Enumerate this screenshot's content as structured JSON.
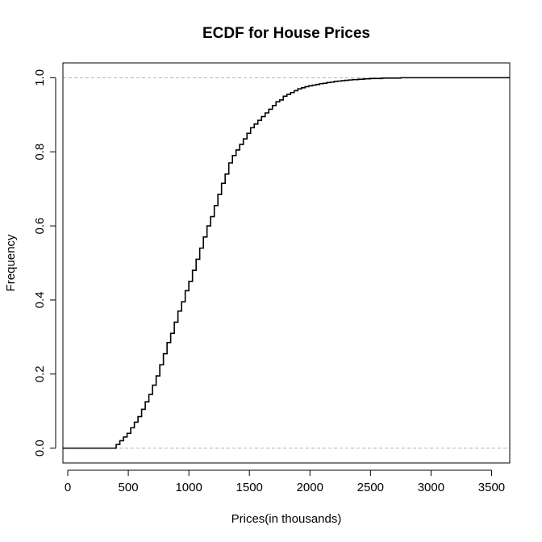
{
  "chart_data": {
    "type": "line",
    "title": "ECDF for House Prices",
    "xlabel": "Prices(in thousands)",
    "ylabel": "Frequency",
    "xlim": [
      -40,
      3650
    ],
    "ylim": [
      -0.04,
      1.04
    ],
    "x_ticks": [
      0,
      500,
      1000,
      1500,
      2000,
      2500,
      3000,
      3500
    ],
    "x_tick_labels": [
      "0",
      "500",
      "1000",
      "1500",
      "2000",
      "2500",
      "3000",
      "3500"
    ],
    "y_ticks": [
      0.0,
      0.2,
      0.4,
      0.6,
      0.8,
      1.0
    ],
    "y_tick_labels": [
      "0.0",
      "0.2",
      "0.4",
      "0.6",
      "0.8",
      "1.0"
    ],
    "reference_lines": [
      0,
      1
    ],
    "grid": false,
    "legend": "none",
    "series": [
      {
        "x": [
          -40,
          370,
          400,
          430,
          460,
          490,
          520,
          550,
          580,
          610,
          640,
          670,
          700,
          730,
          760,
          790,
          820,
          850,
          880,
          910,
          940,
          970,
          1000,
          1030,
          1060,
          1090,
          1120,
          1150,
          1180,
          1210,
          1240,
          1270,
          1300,
          1330,
          1360,
          1390,
          1420,
          1450,
          1480,
          1510,
          1540,
          1570,
          1600,
          1630,
          1660,
          1690,
          1720,
          1750,
          1780,
          1810,
          1840,
          1870,
          1900,
          1930,
          1960,
          1990,
          2020,
          2050,
          2080,
          2110,
          2140,
          2170,
          2200,
          2230,
          2260,
          2290,
          2320,
          2350,
          2400,
          2450,
          2500,
          2550,
          2600,
          2650,
          2700,
          2750,
          2800,
          2850,
          2900,
          2950,
          3000,
          3050,
          3100,
          3650
        ],
        "y": [
          0.0,
          0.0,
          0.01,
          0.02,
          0.03,
          0.04,
          0.055,
          0.07,
          0.085,
          0.105,
          0.125,
          0.145,
          0.17,
          0.195,
          0.225,
          0.255,
          0.285,
          0.31,
          0.34,
          0.37,
          0.395,
          0.425,
          0.45,
          0.48,
          0.51,
          0.54,
          0.57,
          0.6,
          0.625,
          0.655,
          0.685,
          0.715,
          0.74,
          0.77,
          0.79,
          0.805,
          0.82,
          0.835,
          0.85,
          0.865,
          0.875,
          0.885,
          0.895,
          0.905,
          0.915,
          0.925,
          0.935,
          0.94,
          0.95,
          0.955,
          0.96,
          0.965,
          0.97,
          0.973,
          0.976,
          0.978,
          0.98,
          0.982,
          0.984,
          0.985,
          0.987,
          0.988,
          0.99,
          0.991,
          0.992,
          0.993,
          0.994,
          0.995,
          0.996,
          0.997,
          0.998,
          0.998,
          0.999,
          0.999,
          0.999,
          1.0,
          1.0,
          1.0,
          1.0,
          1.0,
          1.0,
          1.0,
          1.0,
          1.0
        ]
      }
    ]
  },
  "colors": {
    "line": "#000000",
    "reference_line": "#b3b3b3",
    "axis": "#000000",
    "background": "#ffffff"
  }
}
